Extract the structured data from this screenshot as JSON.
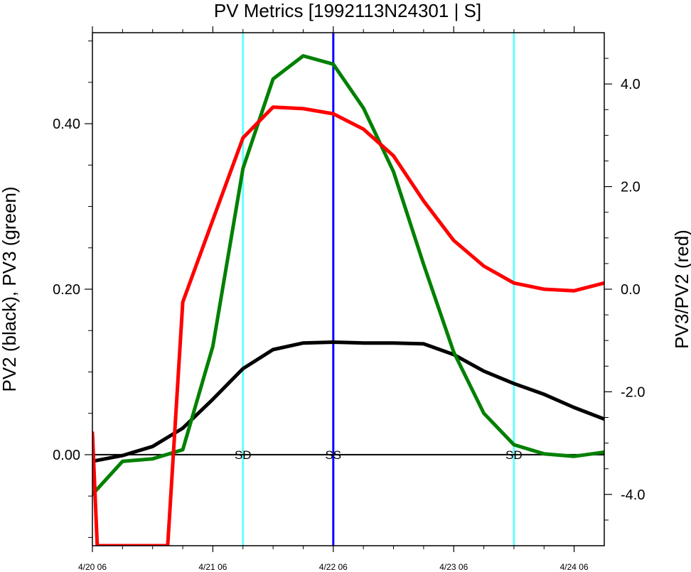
{
  "chart_data": {
    "type": "line",
    "title": "PV Metrics [1992113N24301 | S]",
    "ylabel_left": "PV2 (black), PV3 (green)",
    "ylabel_right": "PV3/PV2 (red)",
    "x_tick_labels": [
      "4/20 06",
      "4/21 06",
      "4/22 06",
      "4/23 06",
      "4/24 06"
    ],
    "x_ticks": [
      0,
      1,
      2,
      3,
      4
    ],
    "xlim": [
      0,
      4.25
    ],
    "left_axis": {
      "ylim": [
        -0.11,
        0.51
      ],
      "ticks": [
        0.0,
        0.2,
        0.4
      ],
      "tick_labels": [
        "0.00",
        "0.20",
        "0.40"
      ]
    },
    "right_axis": {
      "ylim": [
        -5.0,
        5.0
      ],
      "ticks": [
        -4.0,
        -2.0,
        0.0,
        2.0,
        4.0
      ],
      "tick_labels": [
        "-4.0",
        "-2.0",
        "0.0",
        "2.0",
        "4.0"
      ]
    },
    "zero_line": 0,
    "series": [
      {
        "color": "#000000",
        "axis": "left",
        "x": [
          0,
          0.25,
          0.5,
          0.75,
          1.0,
          1.25,
          1.5,
          1.75,
          2.0,
          2.25,
          2.5,
          2.75,
          3.0,
          3.25,
          3.5,
          3.75,
          4.0,
          4.25
        ],
        "y": [
          -0.008,
          -0.001,
          0.01,
          0.032,
          0.067,
          0.104,
          0.127,
          0.135,
          0.136,
          0.135,
          0.135,
          0.134,
          0.121,
          0.101,
          0.086,
          0.073,
          0.057,
          0.043
        ]
      },
      {
        "color": "#008000",
        "axis": "left",
        "x": [
          0,
          0.25,
          0.5,
          0.75,
          1.0,
          1.25,
          1.5,
          1.75,
          2.0,
          2.25,
          2.5,
          2.75,
          3.0,
          3.25,
          3.5,
          3.75,
          4.0,
          4.25
        ],
        "y": [
          -0.048,
          -0.008,
          -0.005,
          0.006,
          0.131,
          0.346,
          0.454,
          0.482,
          0.472,
          0.419,
          0.342,
          0.23,
          0.124,
          0.05,
          0.012,
          0.001,
          -0.002,
          0.003
        ]
      },
      {
        "color": "#ff0000",
        "axis": "right",
        "x": [
          0,
          0.04,
          0.625,
          0.75,
          1.0,
          1.25,
          1.5,
          1.75,
          2.0,
          2.25,
          2.5,
          2.75,
          3.0,
          3.25,
          3.5,
          3.75,
          4.0,
          4.25
        ],
        "y": [
          -2.8,
          -5.0,
          -5.0,
          -0.25,
          1.35,
          2.95,
          3.55,
          3.52,
          3.42,
          3.12,
          2.6,
          1.72,
          0.95,
          0.45,
          0.12,
          0.0,
          -0.03,
          0.12
        ]
      }
    ],
    "vertical_lines": [
      {
        "x": 1.25,
        "color": "#66ffff",
        "label": "SD"
      },
      {
        "x": 2.0,
        "color": "#0000ff",
        "label": "SS"
      },
      {
        "x": 3.5,
        "color": "#66ffff",
        "label": "SD"
      }
    ]
  }
}
